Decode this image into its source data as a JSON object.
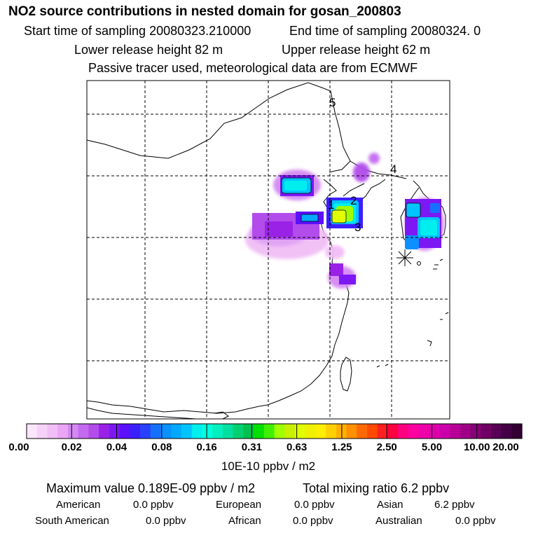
{
  "header": {
    "title": "NO2 source contributions in nested domain for gosan_200803",
    "start_time": "Start time of sampling 20080323.210000",
    "end_time": "End time of sampling 20080324.     0",
    "lower_height": "Lower release height   82 m",
    "upper_height": "Upper release height   62 m",
    "tracer_note": "Passive tracer used, meteorological data are from ECMWF"
  },
  "map_labels": [
    "1",
    "2",
    "3",
    "4",
    "5"
  ],
  "colorbar": {
    "ticks": [
      "0.00",
      "0.02",
      "0.04",
      "0.08",
      "0.16",
      "0.31",
      "0.63",
      "1.25",
      "2.50",
      "5.00",
      "10.00",
      "20.00"
    ],
    "units": "10E-10 ppbv / m2",
    "colors": [
      "#fbe6fb",
      "#f7d2f8",
      "#f1bef6",
      "#eaa6f5",
      "#d488f2",
      "#c36aee",
      "#b24ceb",
      "#9a22e6",
      "#7b18f4",
      "#5b10ff",
      "#3b20ff",
      "#2a40ff",
      "#1670ff",
      "#0a90ff",
      "#00a8ff",
      "#00c4ff",
      "#00eeee",
      "#00ffdd",
      "#00f0c0",
      "#00e0a0",
      "#00d070",
      "#00c050",
      "#00e000",
      "#40f000",
      "#a0ff00",
      "#c8f000",
      "#e0ff00",
      "#f0f000",
      "#ffee00",
      "#ffd000",
      "#ffb000",
      "#ff9000",
      "#ff6a00",
      "#ff4a00",
      "#ff2020",
      "#ff0040",
      "#ff0080",
      "#ff00a0",
      "#ee00aa",
      "#dd00aa",
      "#cc00aa",
      "#b80099",
      "#a00088",
      "#880077",
      "#700066",
      "#580055",
      "#440044",
      "#330033"
    ]
  },
  "stats": {
    "max_value": "Maximum value  0.189E-09 ppbv / m2",
    "total_mixing": "Total mixing ratio       6.2 ppbv",
    "american_label": "American",
    "american_value": "0.0 ppbv",
    "european_label": "European",
    "european_value": "0.0 ppbv",
    "asian_label": "Asian",
    "asian_value": "6.2 ppbv",
    "south_american_label": "South American",
    "south_american_value": "0.0 ppbv",
    "african_label": "African",
    "african_value": "0.0 ppbv",
    "australian_label": "Australian",
    "australian_value": "0.0 ppbv"
  },
  "chart_data": {
    "type": "heatmap",
    "title": "NO2 source contributions in nested domain for gosan_200803",
    "colorbar_levels": [
      0.0,
      0.02,
      0.04,
      0.08,
      0.16,
      0.31,
      0.63,
      1.25,
      2.5,
      5.0,
      10.0,
      20.0
    ],
    "colorbar_units": "10E-10 ppbv / m2",
    "maximum_value_ppbv_per_m2": 1.89e-10,
    "total_mixing_ratio_ppbv": 6.2,
    "region_contributions_ppbv": {
      "American": 0.0,
      "European": 0.0,
      "Asian": 6.2,
      "South American": 0.0,
      "African": 0.0,
      "Australian": 0.0
    },
    "grid": true
  }
}
